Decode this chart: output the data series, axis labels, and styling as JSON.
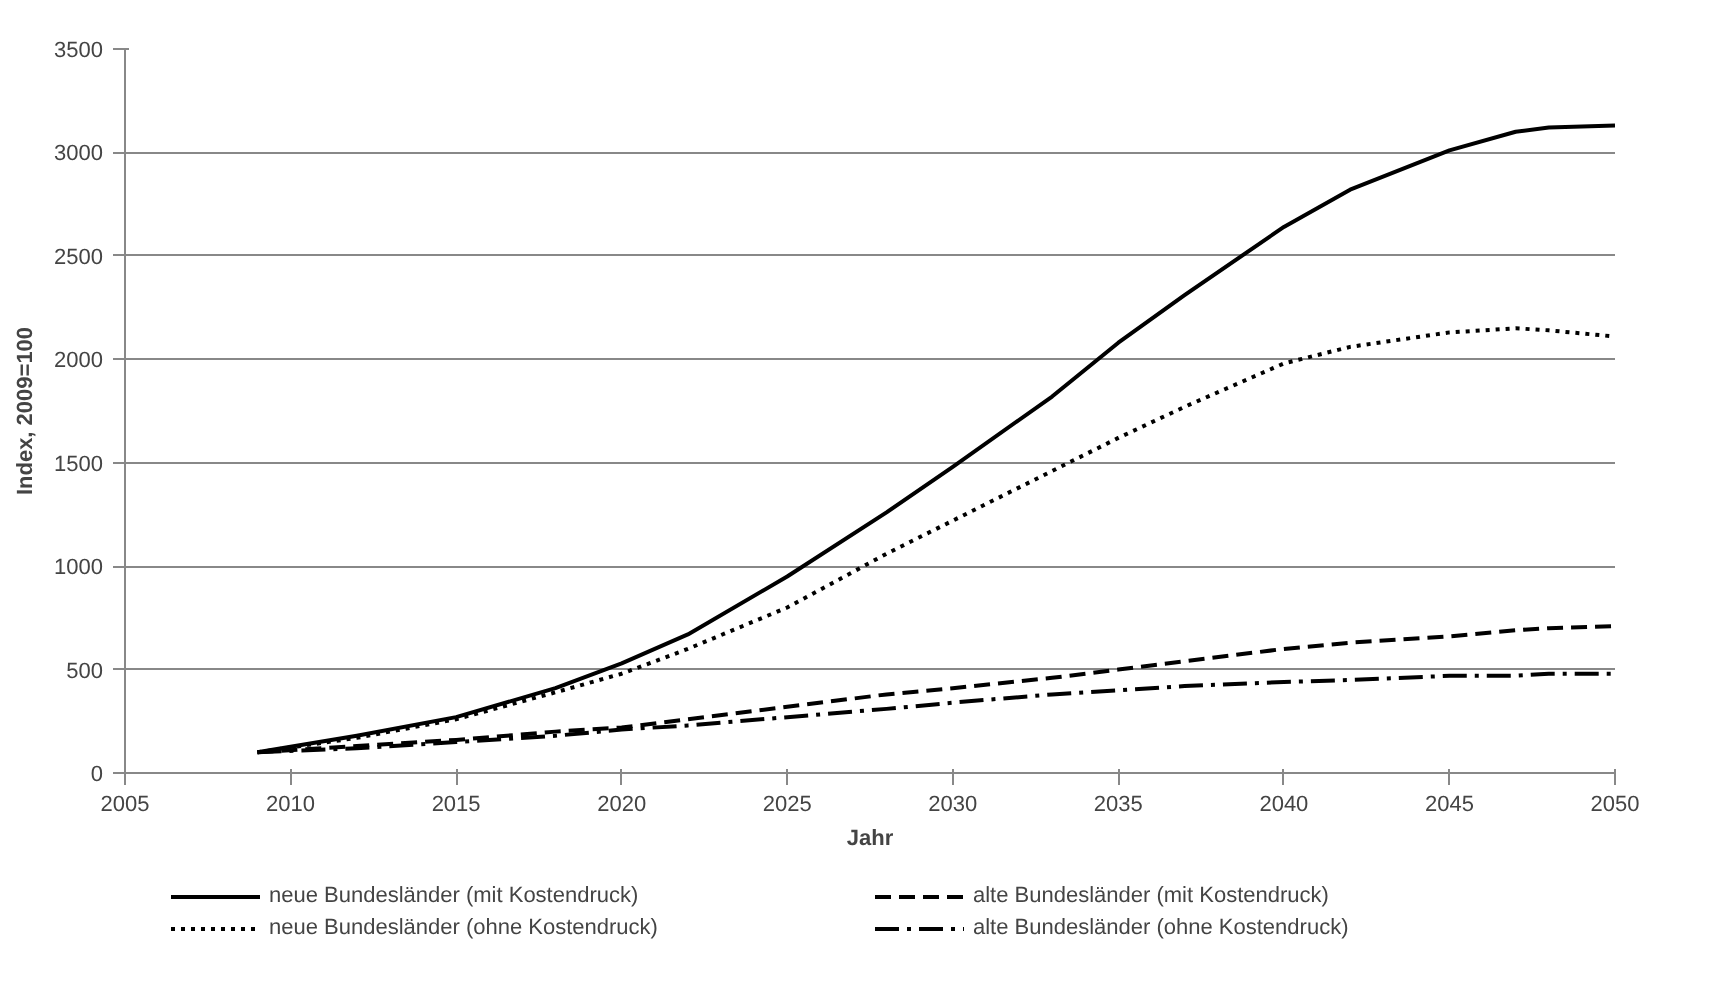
{
  "chart_data": {
    "type": "line",
    "xlabel": "Jahr",
    "ylabel": "Index, 2009=100",
    "x": [
      2009,
      2012,
      2015,
      2018,
      2020,
      2022,
      2025,
      2028,
      2030,
      2033,
      2035,
      2037,
      2040,
      2042,
      2045,
      2047,
      2048,
      2050
    ],
    "series": [
      {
        "name": "neue Bundesländer (mit Kostendruck)",
        "color": "#000000",
        "line_style": "solid",
        "values": [
          100,
          180,
          270,
          410,
          530,
          670,
          950,
          1260,
          1480,
          1820,
          2080,
          2310,
          2640,
          2820,
          3010,
          3100,
          3120,
          3130
        ]
      },
      {
        "name": "neue Bundesländer (ohne Kostendruck)",
        "color": "#000000",
        "line_style": "dotted",
        "values": [
          100,
          170,
          260,
          390,
          480,
          600,
          800,
          1060,
          1220,
          1460,
          1620,
          1770,
          1980,
          2060,
          2130,
          2150,
          2140,
          2110
        ]
      },
      {
        "name": "alte Bundesländer (mit Kostendruck)",
        "color": "#000000",
        "line_style": "dashed",
        "values": [
          100,
          130,
          160,
          200,
          220,
          260,
          320,
          380,
          410,
          460,
          500,
          540,
          600,
          630,
          660,
          690,
          700,
          710
        ]
      },
      {
        "name": "alte Bundesländer (ohne Kostendruck)",
        "color": "#000000",
        "line_style": "dashdot",
        "values": [
          100,
          120,
          150,
          180,
          210,
          230,
          270,
          310,
          340,
          380,
          400,
          420,
          440,
          450,
          470,
          470,
          480,
          480
        ]
      }
    ],
    "xlim": [
      2005,
      2050
    ],
    "xticks": [
      2005,
      2010,
      2015,
      2020,
      2025,
      2030,
      2035,
      2040,
      2045,
      2050
    ],
    "ylim": [
      0,
      3500
    ],
    "yticks": [
      0,
      500,
      1000,
      1500,
      2000,
      2500,
      3000,
      3500
    ],
    "grid": "y",
    "legend": "bottom",
    "marker": "none"
  }
}
